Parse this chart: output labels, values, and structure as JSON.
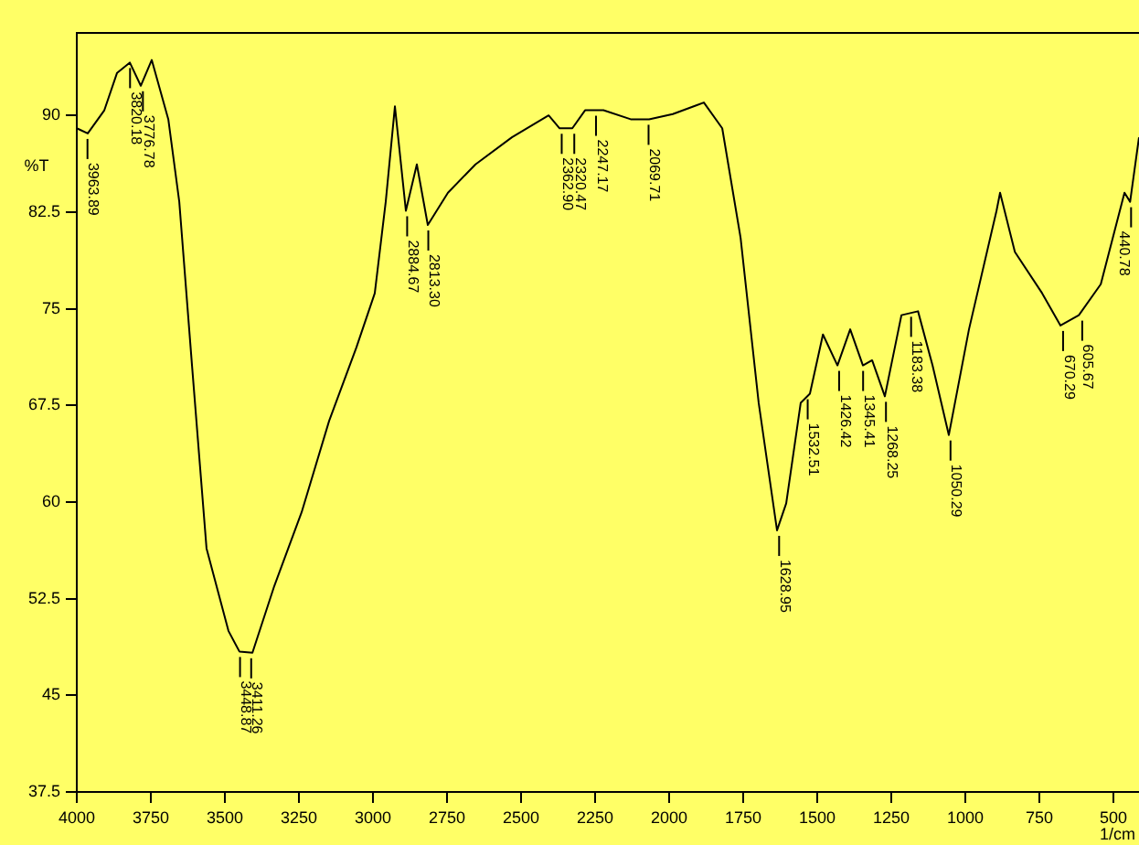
{
  "chart_data": {
    "type": "line",
    "ylabel": "%T",
    "xlabel": "1/cm",
    "x": [
      4000,
      3963,
      3907,
      3864,
      3821,
      3784,
      3747,
      3691,
      3654,
      3611,
      3562,
      3488,
      3451,
      3407,
      3333,
      3241,
      3148,
      3056,
      2994,
      2957,
      2926,
      2889,
      2852,
      2815,
      2747,
      2654,
      2531,
      2407,
      2370,
      2327,
      2284,
      2222,
      2130,
      2068,
      1988,
      1883,
      1821,
      1759,
      1698,
      1636,
      1605,
      1556,
      1525,
      1481,
      1432,
      1389,
      1346,
      1315,
      1272,
      1216,
      1160,
      1111,
      1056,
      988,
      895,
      883,
      833,
      741,
      679,
      617,
      543,
      463,
      444,
      414
    ],
    "series": [
      {
        "color": "#000000",
        "values": [
          89.0,
          88.6,
          90.4,
          93.3,
          94.1,
          92.3,
          94.3,
          89.7,
          83.3,
          70.6,
          56.4,
          50.0,
          48.4,
          48.3,
          53.5,
          59.2,
          66.3,
          72.0,
          76.2,
          83.3,
          90.7,
          82.6,
          86.2,
          81.5,
          84.0,
          86.2,
          88.3,
          90.0,
          89.0,
          89.0,
          90.4,
          90.4,
          89.7,
          89.7,
          90.1,
          91.0,
          89.0,
          80.5,
          67.7,
          57.8,
          59.9,
          67.7,
          68.4,
          73.0,
          70.6,
          73.4,
          70.6,
          71.0,
          68.2,
          74.5,
          74.8,
          70.6,
          65.2,
          73.4,
          82.6,
          84.0,
          79.4,
          76.2,
          73.7,
          74.5,
          76.9,
          84.0,
          83.3,
          88.3
        ]
      }
    ],
    "xlim": [
      4000,
      414
    ],
    "xticks": [
      4000,
      3750,
      3500,
      3250,
      3000,
      2750,
      2500,
      2250,
      2000,
      1750,
      1500,
      1250,
      1000,
      750,
      500
    ],
    "ylim": [
      37.5,
      96.4
    ],
    "yticks": [
      37.5,
      45,
      52.5,
      60,
      67.5,
      75,
      82.5,
      90
    ],
    "grid": false,
    "legend": false,
    "marker": "none",
    "line_style": "solid",
    "annotations": [
      {
        "text": "3963.89",
        "x": 3963.89,
        "y": 88.6
      },
      {
        "text": "3820.18",
        "x": 3820.18,
        "y": 94.1
      },
      {
        "text": "3776.78",
        "x": 3776.78,
        "y": 92.3
      },
      {
        "text": "3448.87",
        "x": 3448.87,
        "y": 48.4
      },
      {
        "text": "3411.26",
        "x": 3411.26,
        "y": 48.3
      },
      {
        "text": "2884.67",
        "x": 2884.67,
        "y": 82.6
      },
      {
        "text": "2813.30",
        "x": 2813.3,
        "y": 81.5
      },
      {
        "text": "2362.90",
        "x": 2362.9,
        "y": 89.0
      },
      {
        "text": "2320.47",
        "x": 2320.47,
        "y": 89.0
      },
      {
        "text": "2247.17",
        "x": 2247.17,
        "y": 90.4
      },
      {
        "text": "2069.71",
        "x": 2069.71,
        "y": 89.7
      },
      {
        "text": "1628.95",
        "x": 1628.95,
        "y": 57.8
      },
      {
        "text": "1532.51",
        "x": 1532.51,
        "y": 68.4
      },
      {
        "text": "1426.42",
        "x": 1426.42,
        "y": 70.6
      },
      {
        "text": "1345.41",
        "x": 1345.41,
        "y": 70.6
      },
      {
        "text": "1268.25",
        "x": 1268.25,
        "y": 68.2
      },
      {
        "text": "1183.38",
        "x": 1183.38,
        "y": 74.8
      },
      {
        "text": "1050.29",
        "x": 1050.29,
        "y": 65.2
      },
      {
        "text": "670.29",
        "x": 670.29,
        "y": 73.7
      },
      {
        "text": "605.67",
        "x": 605.67,
        "y": 74.5
      },
      {
        "text": "440.78",
        "x": 440.78,
        "y": 83.3
      }
    ]
  }
}
